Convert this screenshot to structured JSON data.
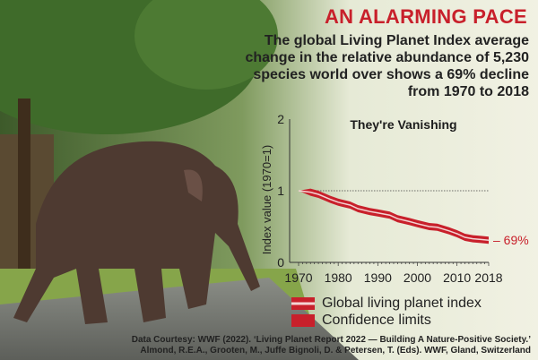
{
  "header": {
    "title": "AN ALARMING PACE",
    "subtitle": "The global Living Planet Index average change in the relative abundance of 5,230 species world over shows a 69% decline from 1970 to 2018"
  },
  "colors": {
    "accent": "#c8202b",
    "band": "#c8202b",
    "line": "#f4d4d4"
  },
  "chart_data": {
    "type": "line",
    "title": "They're Vanishing",
    "ylabel": "Index value (1970=1)",
    "xlabel": "",
    "xlim": [
      1970,
      2018
    ],
    "ylim": [
      0,
      2
    ],
    "xticks": [
      "1970",
      "1980",
      "1990",
      "2000",
      "2010",
      "2018"
    ],
    "yticks": [
      "0",
      "1",
      "2"
    ],
    "reference_line": 1,
    "annotation": "– 69%",
    "series": [
      {
        "name": "Global living planet index",
        "x": [
          1970,
          1973,
          1975,
          1978,
          1980,
          1983,
          1985,
          1988,
          1990,
          1993,
          1995,
          1998,
          2000,
          2003,
          2005,
          2008,
          2010,
          2012,
          2014,
          2016,
          2018
        ],
        "values": [
          1.0,
          0.98,
          0.95,
          0.88,
          0.84,
          0.8,
          0.75,
          0.71,
          0.69,
          0.66,
          0.61,
          0.57,
          0.54,
          0.5,
          0.49,
          0.44,
          0.4,
          0.35,
          0.33,
          0.32,
          0.31
        ]
      },
      {
        "name": "Confidence limits",
        "band_halfwidth": 0.05
      }
    ]
  },
  "legend": {
    "items": [
      "Global living planet index",
      "Confidence limits"
    ]
  },
  "credit": {
    "line1": "Data Courtesy: WWF (2022). ‘Living Planet Report 2022 — Building A Nature-Positive Society.’",
    "line2": "Almond, R.E.A., Grooten, M., Juffe Bignoli, D. & Petersen, T. (Eds). WWF, Gland, Switzerland"
  }
}
